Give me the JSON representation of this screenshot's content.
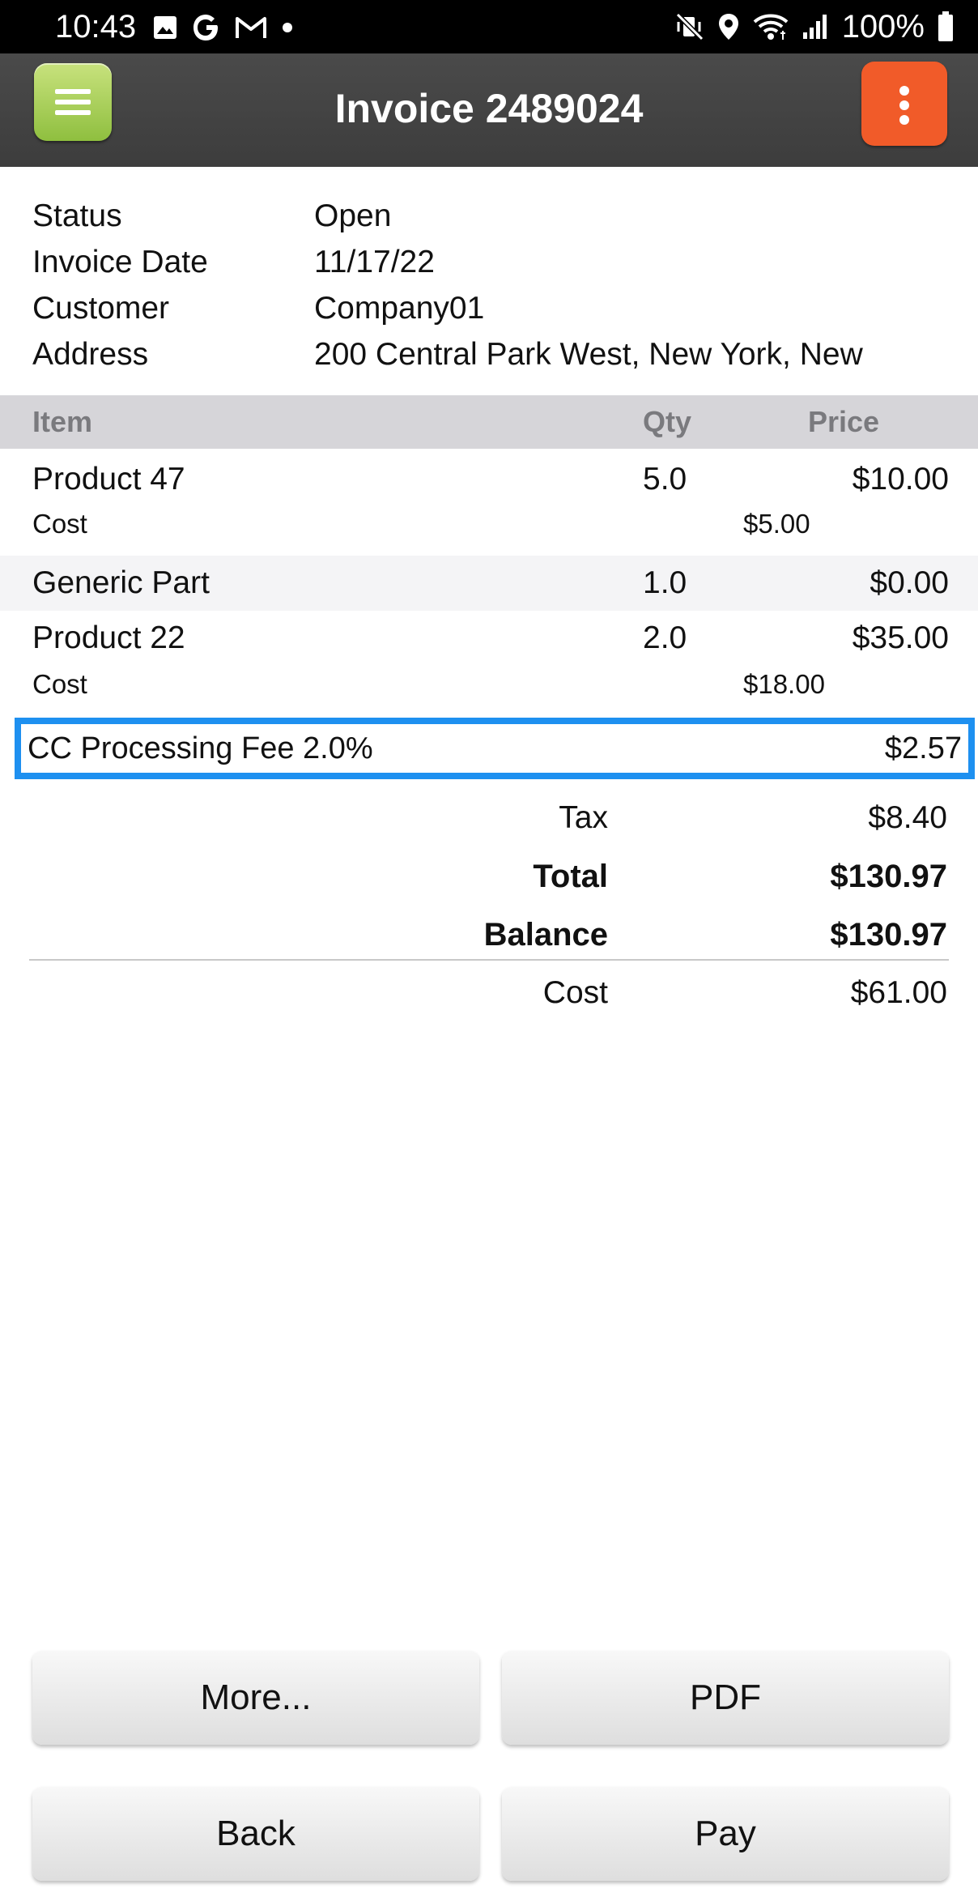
{
  "status_bar": {
    "time": "10:43",
    "left_icons": [
      "image-icon",
      "google-icon",
      "gmail-icon",
      "dot-icon"
    ],
    "right_icons": [
      "mute-vibrate-icon",
      "location-icon",
      "wifi-icon",
      "signal-icon",
      "battery-icon"
    ],
    "battery": "100%"
  },
  "header": {
    "title": "Invoice 2489024",
    "menu_icon": "hamburger-menu-icon",
    "more_icon": "more-vertical-icon",
    "menu_color": "#9bc94a",
    "more_color": "#f15b29"
  },
  "info": [
    {
      "label": "Status",
      "value": "Open"
    },
    {
      "label": "Invoice Date",
      "value": "11/17/22"
    },
    {
      "label": "Customer",
      "value": "Company01"
    },
    {
      "label": "Address",
      "value": "200 Central Park West, New York, New"
    }
  ],
  "table": {
    "headers": {
      "item": "Item",
      "qty": "Qty",
      "price": "Price"
    },
    "lines": [
      {
        "item": "Product 47",
        "qty": "5.0",
        "price": "$10.00",
        "cost_label": "Cost",
        "cost": "$5.00"
      },
      {
        "item": "Generic Part",
        "qty": "1.0",
        "price": "$0.00"
      },
      {
        "item": "Product 22",
        "qty": "2.0",
        "price": "$35.00",
        "cost_label": "Cost",
        "cost": "$18.00"
      }
    ]
  },
  "fee": {
    "label": "CC Processing Fee 2.0%",
    "amount": "$2.57",
    "highlight_color": "#1e90f0"
  },
  "totals": {
    "tax_label": "Tax",
    "tax": "$8.40",
    "total_label": "Total",
    "total": "$130.97",
    "balance_label": "Balance",
    "balance": "$130.97",
    "cost_label": "Cost",
    "cost": "$61.00"
  },
  "buttons": {
    "more": "More...",
    "pdf": "PDF",
    "back": "Back",
    "pay": "Pay"
  }
}
